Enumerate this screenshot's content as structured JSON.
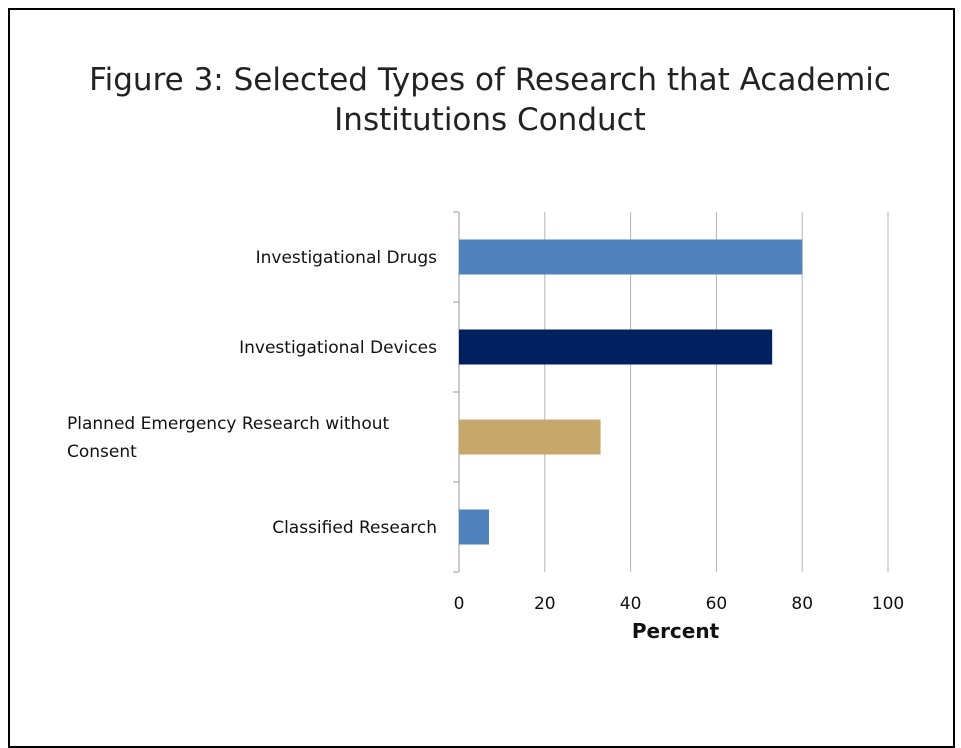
{
  "chart_data": {
    "type": "bar",
    "orientation": "horizontal",
    "title": "Figure 3: Selected Types of Research that Academic Institutions Conduct",
    "xlabel": "Percent",
    "ylabel": "",
    "xlim": [
      0,
      100
    ],
    "ticks": [
      "0",
      "20",
      "40",
      "60",
      "80",
      "100"
    ],
    "grid": true,
    "categories": [
      [
        "Investigational Drugs"
      ],
      [
        "Investigational Devices"
      ],
      [
        "Planned Emergency Research without",
        "Consent"
      ],
      [
        "Classified Research"
      ]
    ],
    "values": [
      80,
      73,
      33,
      7
    ],
    "colors": [
      "#4f81bd",
      "#002060",
      "#c6a96a",
      "#4f81bd"
    ]
  }
}
